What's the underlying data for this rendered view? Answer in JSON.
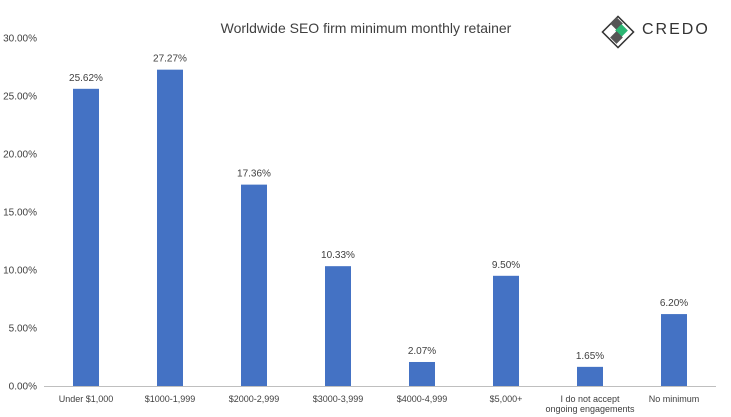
{
  "logo": {
    "text": "CREDO",
    "accent_color": "#2BB673"
  },
  "colors": {
    "bar": "#4472C4",
    "axis": "#BFBFBF",
    "text": "#404040"
  },
  "chart_data": {
    "type": "bar",
    "title": "Worldwide SEO firm minimum monthly retainer",
    "categories": [
      [
        "Under $1,000"
      ],
      [
        "$1000-1,999"
      ],
      [
        "$2000-2,999"
      ],
      [
        "$3000-3,999"
      ],
      [
        "$4000-4,999"
      ],
      [
        "$5,000+"
      ],
      [
        "I do not accept",
        "ongoing engagements"
      ],
      [
        "No minimum"
      ]
    ],
    "values": [
      25.62,
      27.27,
      17.36,
      10.33,
      2.07,
      9.5,
      1.65,
      6.2
    ],
    "data_labels": [
      "25.62%",
      "27.27%",
      "17.36%",
      "10.33%",
      "2.07%",
      "9.50%",
      "1.65%",
      "6.20%"
    ],
    "y_ticks": [
      0,
      5,
      10,
      15,
      20,
      25,
      30
    ],
    "y_tick_labels": [
      "0.00%",
      "5.00%",
      "10.00%",
      "15.00%",
      "20.00%",
      "25.00%",
      "30.00%"
    ],
    "ylim": [
      0,
      30
    ],
    "grid": false,
    "legend": "none"
  }
}
